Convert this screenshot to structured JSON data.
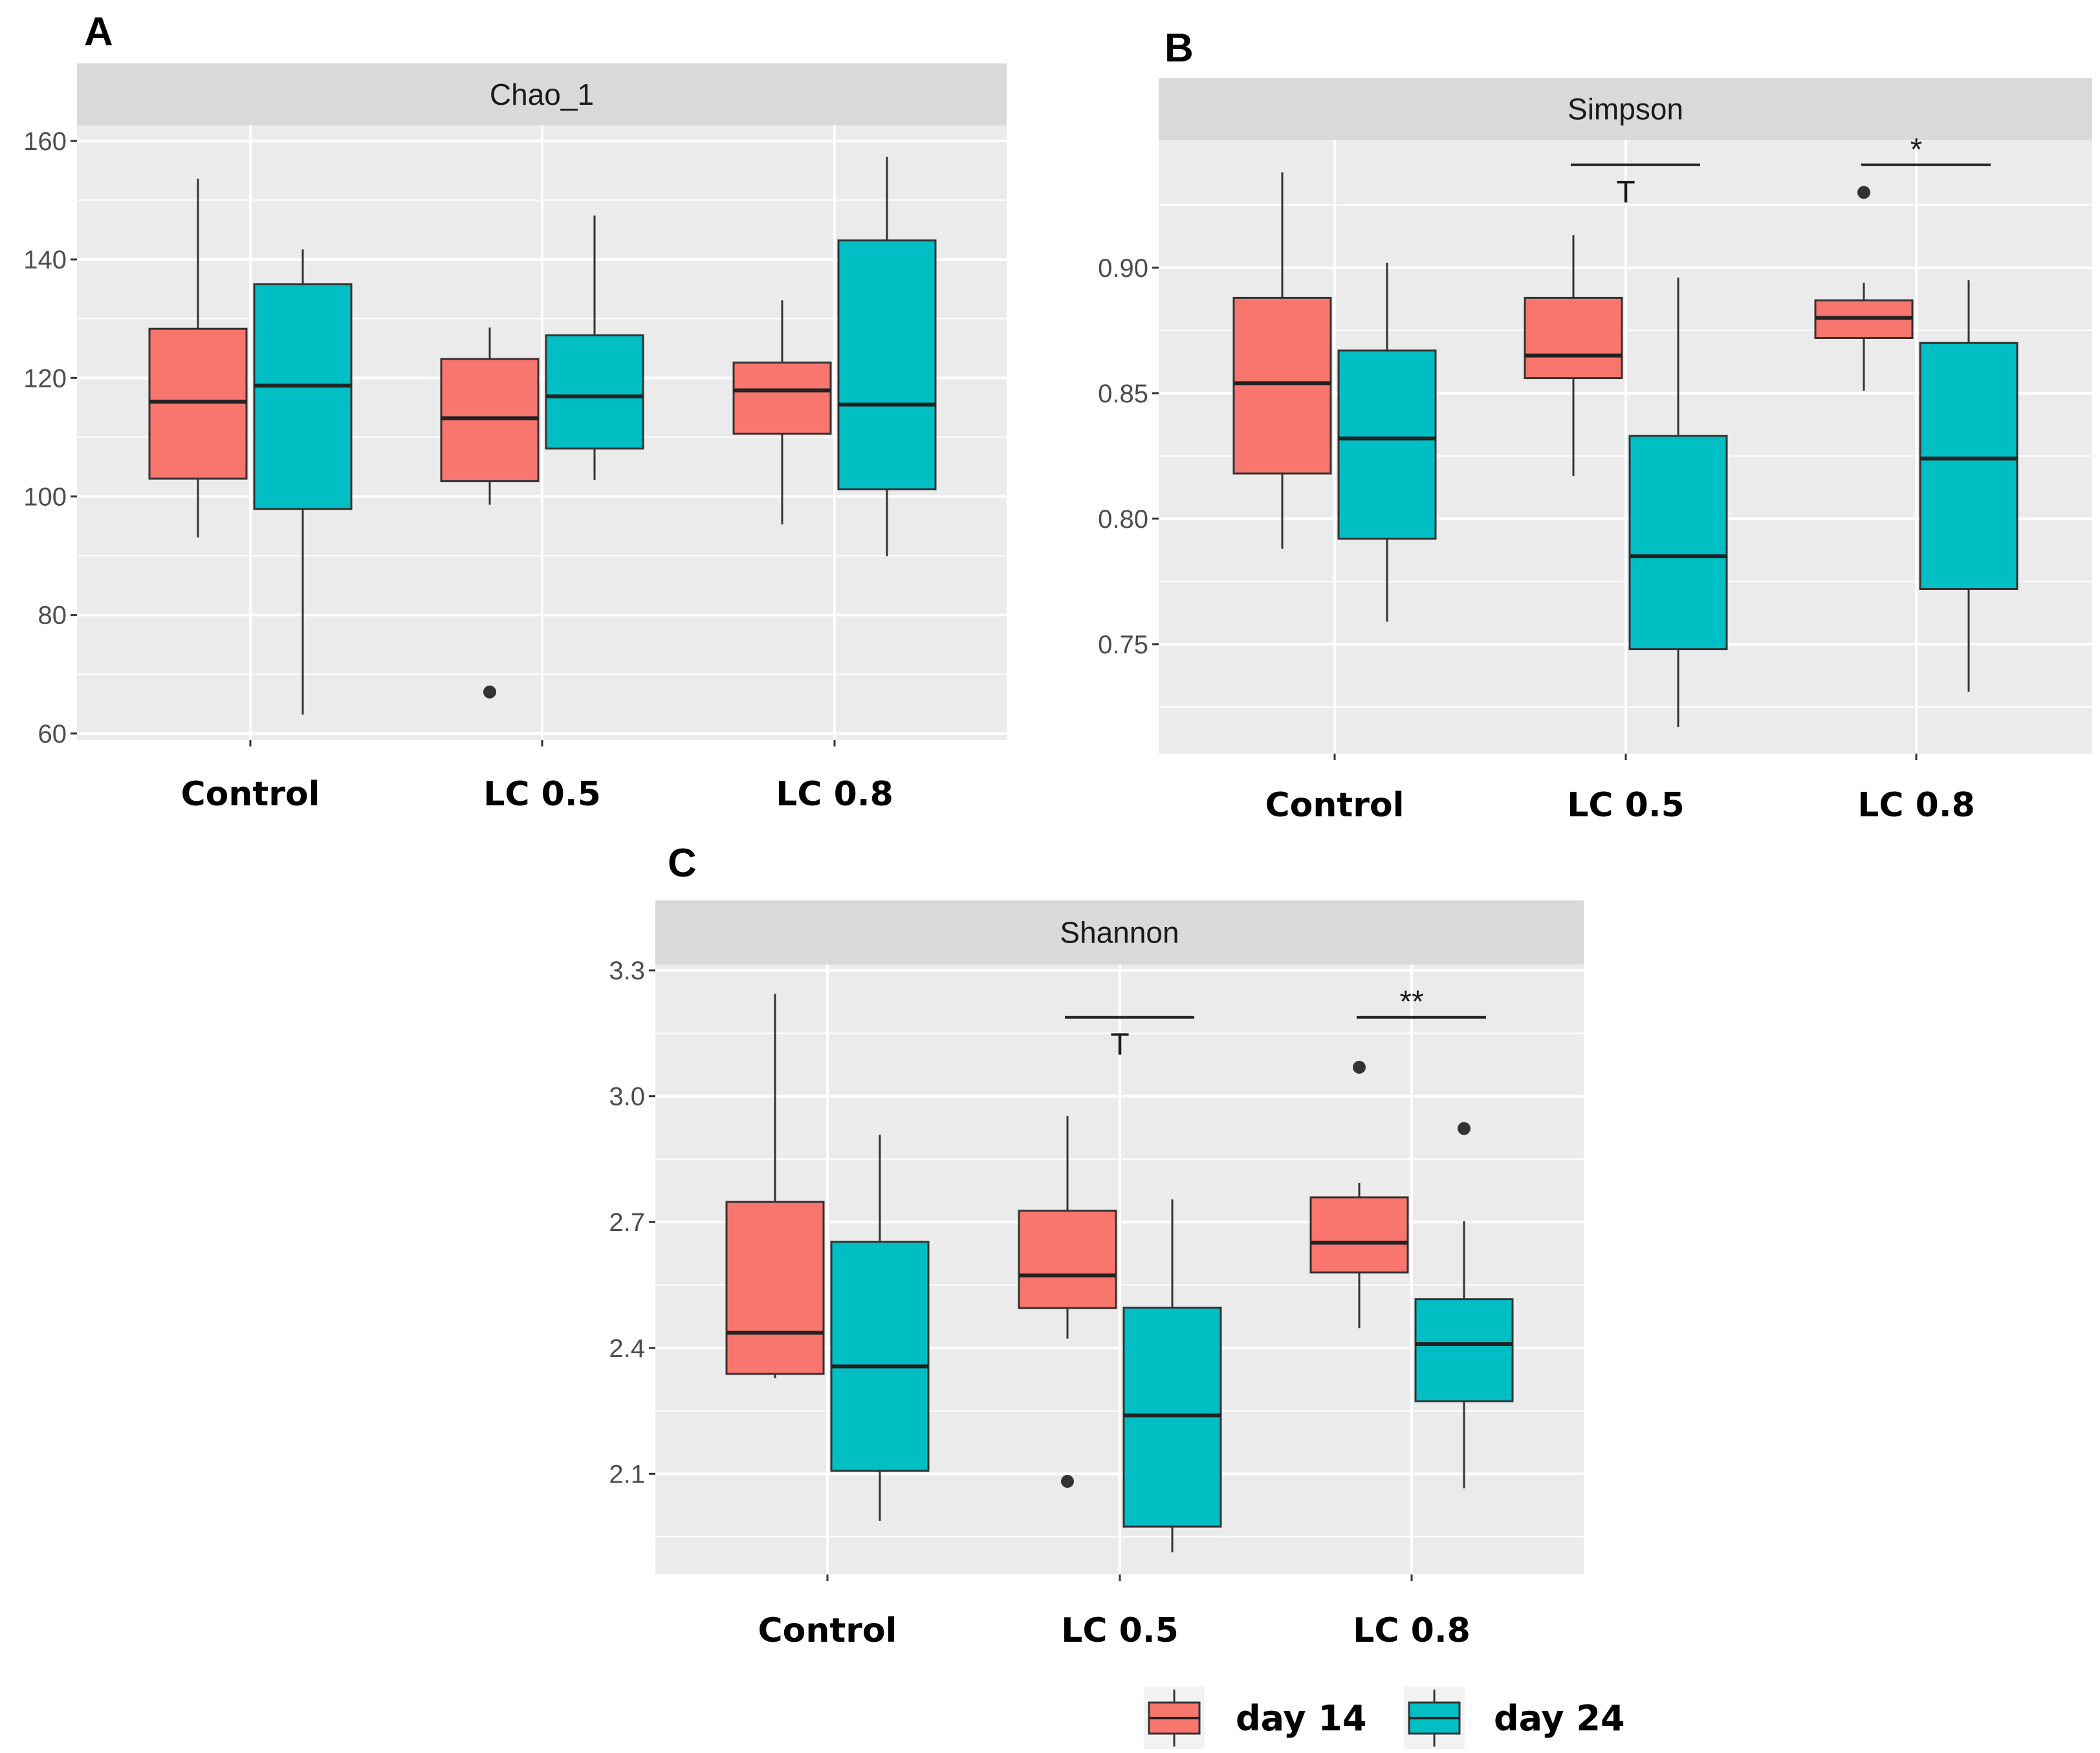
{
  "chart_data": [
    {
      "type": "box",
      "panel_label": "A",
      "title": "Chao_1",
      "categories": [
        "Control",
        "LC 0.5",
        "LC 0.8"
      ],
      "ylim": [
        58.9,
        162.6
      ],
      "yticks": [
        60,
        80,
        100,
        120,
        140,
        160
      ],
      "ytick_labels": [
        "60",
        "80",
        "100",
        "120",
        "140",
        "160"
      ],
      "grid": true,
      "series": [
        {
          "name": "day 14",
          "boxes": [
            {
              "low": 93.1,
              "q1": 103.0,
              "median": 116.0,
              "q3": 128.3,
              "high": 153.6,
              "outliers": []
            },
            {
              "low": 98.6,
              "q1": 102.6,
              "median": 113.2,
              "q3": 123.2,
              "high": 128.5,
              "outliers": [
                67.0
              ]
            },
            {
              "low": 95.3,
              "q1": 110.6,
              "median": 117.9,
              "q3": 122.6,
              "high": 133.1,
              "outliers": []
            }
          ]
        },
        {
          "name": "day 24",
          "boxes": [
            {
              "low": 63.2,
              "q1": 97.9,
              "median": 118.7,
              "q3": 135.8,
              "high": 141.7,
              "outliers": []
            },
            {
              "low": 102.8,
              "q1": 108.1,
              "median": 116.9,
              "q3": 127.2,
              "high": 147.4,
              "outliers": []
            },
            {
              "low": 89.9,
              "q1": 101.2,
              "median": 115.5,
              "q3": 143.2,
              "high": 157.3,
              "outliers": []
            }
          ]
        }
      ],
      "annotations": []
    },
    {
      "type": "box",
      "panel_label": "B",
      "title": "Simpson",
      "categories": [
        "Control",
        "LC 0.5",
        "LC 0.8"
      ],
      "ylim": [
        0.7064,
        0.951
      ],
      "yticks": [
        0.75,
        0.8,
        0.85,
        0.9
      ],
      "ytick_labels": [
        "0.75",
        "0.80",
        "0.85",
        "0.90"
      ],
      "grid": true,
      "series": [
        {
          "name": "day 14",
          "boxes": [
            {
              "low": 0.788,
              "q1": 0.818,
              "median": 0.854,
              "q3": 0.888,
              "high": 0.938,
              "outliers": []
            },
            {
              "low": 0.817,
              "q1": 0.856,
              "median": 0.865,
              "q3": 0.888,
              "high": 0.913,
              "outliers": []
            },
            {
              "low": 0.851,
              "q1": 0.872,
              "median": 0.88,
              "q3": 0.887,
              "high": 0.894,
              "outliers": [
                0.93
              ]
            }
          ]
        },
        {
          "name": "day 24",
          "boxes": [
            {
              "low": 0.759,
              "q1": 0.792,
              "median": 0.832,
              "q3": 0.867,
              "high": 0.902,
              "outliers": []
            },
            {
              "low": 0.717,
              "q1": 0.748,
              "median": 0.785,
              "q3": 0.833,
              "high": 0.896,
              "outliers": []
            },
            {
              "low": 0.731,
              "q1": 0.772,
              "median": 0.824,
              "q3": 0.87,
              "high": 0.895,
              "outliers": []
            }
          ]
        }
      ],
      "annotations": [
        {
          "category": "LC 0.5",
          "y": 0.941,
          "text": "T",
          "position": "below"
        },
        {
          "category": "LC 0.8",
          "y": 0.941,
          "text": "*",
          "position": "above"
        }
      ]
    },
    {
      "type": "box",
      "panel_label": "C",
      "title": "Shannon",
      "categories": [
        "Control",
        "LC 0.5",
        "LC 0.8"
      ],
      "ylim": [
        1.86,
        3.314
      ],
      "yticks": [
        2.1,
        2.4,
        2.7,
        3.0,
        3.3
      ],
      "ytick_labels": [
        "2.1",
        "2.4",
        "2.7",
        "3.0",
        "3.3"
      ],
      "grid": true,
      "series": [
        {
          "name": "day 14",
          "boxes": [
            {
              "low": 2.328,
              "q1": 2.338,
              "median": 2.436,
              "q3": 2.748,
              "high": 3.244,
              "outliers": []
            },
            {
              "low": 2.422,
              "q1": 2.495,
              "median": 2.573,
              "q3": 2.727,
              "high": 2.953,
              "outliers": [
                2.082
              ]
            },
            {
              "low": 2.447,
              "q1": 2.58,
              "median": 2.651,
              "q3": 2.759,
              "high": 2.793,
              "outliers": [
                3.069
              ]
            }
          ]
        },
        {
          "name": "day 24",
          "boxes": [
            {
              "low": 1.988,
              "q1": 2.107,
              "median": 2.356,
              "q3": 2.653,
              "high": 2.908,
              "outliers": []
            },
            {
              "low": 1.913,
              "q1": 1.974,
              "median": 2.239,
              "q3": 2.496,
              "high": 2.754,
              "outliers": []
            },
            {
              "low": 2.065,
              "q1": 2.273,
              "median": 2.409,
              "q3": 2.516,
              "high": 2.702,
              "outliers": [
                2.923
              ]
            }
          ]
        }
      ],
      "annotations": [
        {
          "category": "LC 0.5",
          "y": 3.188,
          "text": "T",
          "position": "below"
        },
        {
          "category": "LC 0.8",
          "y": 3.188,
          "text": "**",
          "position": "above"
        }
      ]
    }
  ],
  "legend": {
    "placement": "bottom-right",
    "items": [
      {
        "label": "day 14",
        "color": "#F8766D"
      },
      {
        "label": "day 24",
        "color": "#00BFC4"
      }
    ]
  },
  "colors": {
    "panel_bg": "#EBEBEB",
    "strip_bg": "#D9D9D9",
    "grid": "#FFFFFF"
  }
}
